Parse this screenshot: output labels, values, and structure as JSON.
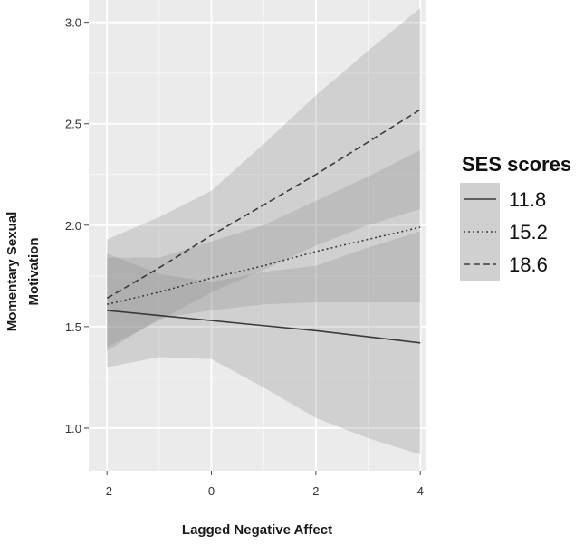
{
  "chart_data": {
    "type": "line",
    "title": "",
    "xlabel": "Lagged Negative Affect",
    "ylabel_lines": [
      "Momentary Sexual",
      "Motivation"
    ],
    "xlim": [
      -2.35,
      4.1
    ],
    "ylim": [
      0.79,
      3.11
    ],
    "xticks": [
      -2,
      0,
      2,
      4
    ],
    "xtick_labels": [
      "-2",
      "0",
      "2",
      "4"
    ],
    "yticks": [
      1.0,
      1.5,
      2.0,
      2.5,
      3.0
    ],
    "ytick_labels": [
      "1.0",
      "1.5",
      "2.0",
      "2.5",
      "3.0"
    ],
    "grid": true,
    "legend": {
      "title": "SES scores",
      "position": "right"
    },
    "x": [
      -2,
      -1,
      0,
      1,
      2,
      3,
      4
    ],
    "series": [
      {
        "name": "11.8",
        "style": "solid",
        "values": [
          1.58,
          1.555,
          1.53,
          1.505,
          1.48,
          1.45,
          1.42
        ],
        "ci_lower": [
          1.3,
          1.35,
          1.34,
          1.2,
          1.05,
          0.95,
          0.87
        ],
        "ci_upper": [
          1.86,
          1.76,
          1.72,
          1.77,
          1.8,
          1.89,
          1.97
        ]
      },
      {
        "name": "15.2",
        "style": "dotted",
        "values": [
          1.61,
          1.67,
          1.74,
          1.8,
          1.87,
          1.93,
          1.99
        ],
        "ci_lower": [
          1.38,
          1.54,
          1.58,
          1.61,
          1.62,
          1.62,
          1.62
        ],
        "ci_upper": [
          1.84,
          1.84,
          1.92,
          2.0,
          2.12,
          2.24,
          2.37
        ]
      },
      {
        "name": "18.6",
        "style": "dashed",
        "values": [
          1.64,
          1.79,
          1.95,
          2.1,
          2.25,
          2.41,
          2.57
        ],
        "ci_lower": [
          1.4,
          1.53,
          1.67,
          1.78,
          1.9,
          2.0,
          2.08
        ],
        "ci_upper": [
          1.93,
          2.04,
          2.17,
          2.4,
          2.64,
          2.86,
          3.07
        ]
      }
    ]
  },
  "colors": {
    "panel_bg": "#ebebeb",
    "grid_major": "#ffffff",
    "ribbon": "#8c8c8c",
    "line": "#3a3a3a",
    "legend_key_bg": "#d0d0d0"
  }
}
